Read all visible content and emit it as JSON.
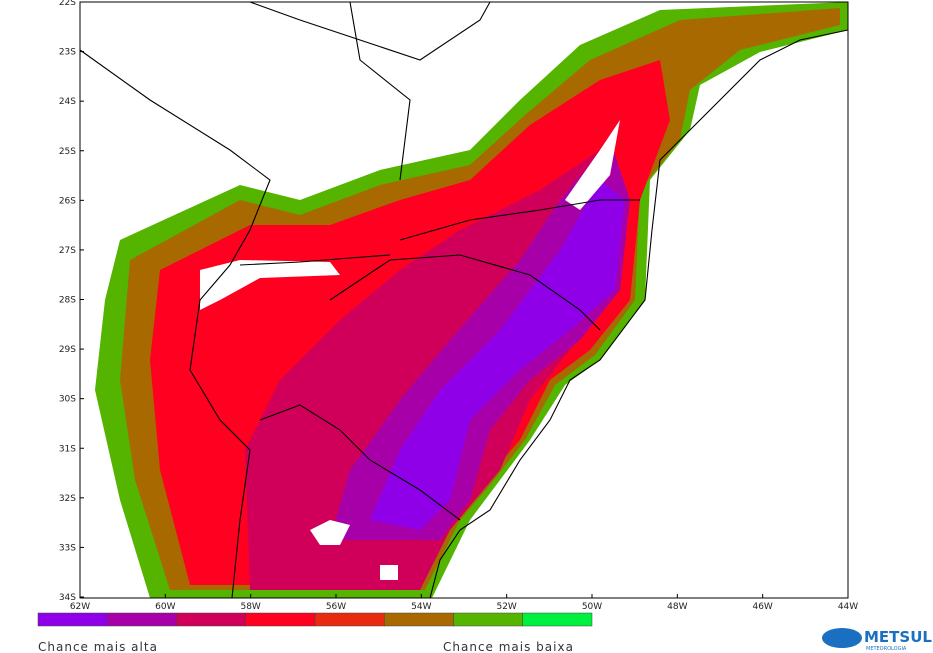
{
  "map": {
    "lat_labels": [
      "22S",
      "23S",
      "24S",
      "25S",
      "26S",
      "27S",
      "28S",
      "29S",
      "30S",
      "31S",
      "32S",
      "33S",
      "34S"
    ],
    "lon_labels": [
      "62W",
      "60W",
      "58W",
      "56W",
      "54W",
      "52W",
      "50W",
      "48W",
      "46W",
      "44W"
    ],
    "legend": {
      "colors": [
        "#8f00e8",
        "#a800a8",
        "#d0005a",
        "#ff0020",
        "#e82a10",
        "#a86a00",
        "#54b400",
        "#00f040"
      ],
      "high_label": "Chance mais alta",
      "low_label": "Chance mais baixa"
    },
    "logo": {
      "name": "METSUL",
      "subtitle": "METEOROLOGIA"
    }
  }
}
